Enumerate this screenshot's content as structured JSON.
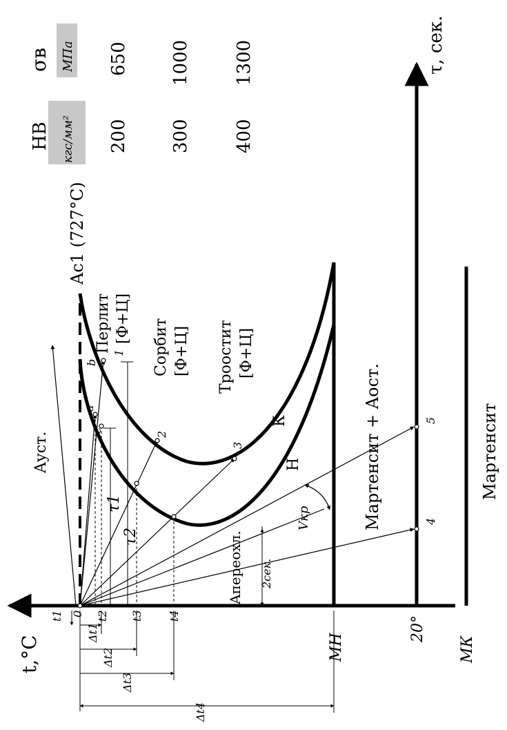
{
  "axes": {
    "temperature_label": "t,°C",
    "time_label": "τ, сек."
  },
  "regions": {
    "austenite_stable": "Aуст.",
    "ac1": "Aс1 (727°C)",
    "pearlite": "Перлит",
    "pearlite_phase": "[Ф+Ц]",
    "sorbite": "Сорбит",
    "sorbite_phase": "[Ф+Ц]",
    "troostite": "Троостит",
    "troostite_phase": "[Ф+Ц]",
    "martensite_residual": "Мартенсит + Aост.",
    "martensite": "Мартенсит",
    "supercooled": "Aпереохл.",
    "two_sec": "2сек.",
    "vkr": "Vкр"
  },
  "curve_labels": {
    "start": "Н",
    "end": "К"
  },
  "points": {
    "origin": "0",
    "a": "a",
    "b": "b",
    "c": "c",
    "p1": "1",
    "p2": "2",
    "p3": "3",
    "p4": "4",
    "p5": "5"
  },
  "time_labels": {
    "tau1": "τ1",
    "tau2": "τ2"
  },
  "temp_ticks": {
    "t1": "t1",
    "t2": "t2",
    "t3": "t3",
    "t4": "t4",
    "mn": "MН",
    "deg20": "20°",
    "mk": "MК"
  },
  "deltas": {
    "dt1": "Δt1",
    "dt2": "Δt2",
    "dt3": "Δt3",
    "dt4": "Δt4"
  },
  "properties": {
    "hb_header": "HB",
    "hb_unit": "кгс/мм²",
    "sigma_header": "σв",
    "sigma_unit": "МПа",
    "rows": [
      {
        "hb": "200",
        "sigma": "650"
      },
      {
        "hb": "300",
        "sigma": "1000"
      },
      {
        "hb": "400",
        "sigma": "1300"
      }
    ]
  }
}
